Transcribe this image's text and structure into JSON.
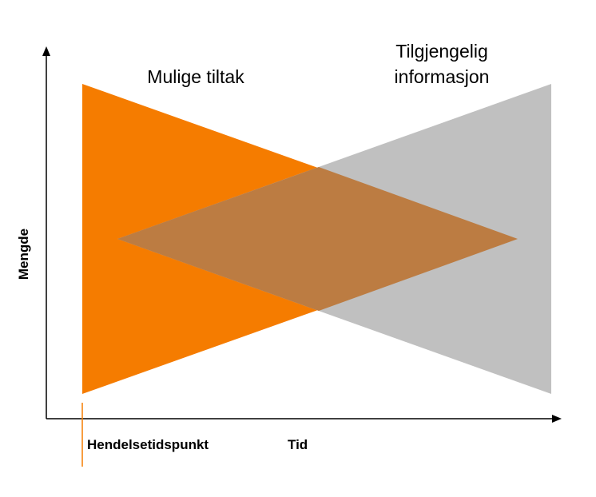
{
  "colors": {
    "orange": "#f57c00",
    "gray": "#c0c0c0",
    "overlap": "#bc7c42",
    "axis": "#000000",
    "event_line": "#f57c00"
  },
  "labels": {
    "mulige_tiltak": "Mulige tiltak",
    "tilgjengelig_line1": "Tilgjengelig",
    "tilgjengelig_line2": "informasjon",
    "y_axis": "Mengde",
    "x_axis": "Tid",
    "event": "Hendelsetidspunkt"
  }
}
